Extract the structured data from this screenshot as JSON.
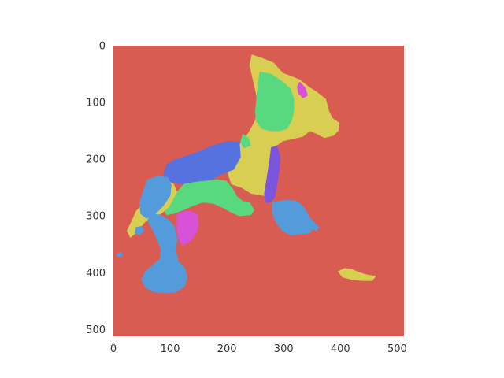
{
  "chart_data": {
    "type": "heatmap",
    "title": "",
    "xlabel": "",
    "ylabel": "",
    "xlim": [
      0,
      512
    ],
    "ylim": [
      512,
      0
    ],
    "grid": false,
    "xticks": [
      "0",
      "100",
      "200",
      "300",
      "400",
      "500"
    ],
    "yticks": [
      "0",
      "100",
      "200",
      "300",
      "400",
      "500"
    ],
    "background_label_color": "#d95c52",
    "segment_colors": {
      "red": "#d95c52",
      "yellow": "#d8cf52",
      "green": "#58d87f",
      "light_blue": "#549bdc",
      "blue": "#5572de",
      "magenta": "#d852d8",
      "purple": "#7b55dc"
    },
    "segments": [
      {
        "color": "yellow",
        "points": [
          [
            244,
            16
          ],
          [
            262,
            22
          ],
          [
            282,
            30
          ],
          [
            298,
            48
          ],
          [
            328,
            60
          ],
          [
            346,
            74
          ],
          [
            356,
            80
          ],
          [
            374,
            94
          ],
          [
            380,
            116
          ],
          [
            386,
            128
          ],
          [
            398,
            136
          ],
          [
            396,
            150
          ],
          [
            388,
            158
          ],
          [
            372,
            162
          ],
          [
            356,
            154
          ],
          [
            346,
            150
          ],
          [
            334,
            160
          ],
          [
            316,
            164
          ],
          [
            298,
            168
          ],
          [
            282,
            180
          ],
          [
            276,
            196
          ],
          [
            272,
            222
          ],
          [
            272,
            244
          ],
          [
            276,
            262
          ],
          [
            264,
            264
          ],
          [
            242,
            260
          ],
          [
            226,
            250
          ],
          [
            208,
            244
          ],
          [
            202,
            226
          ],
          [
            210,
            200
          ],
          [
            224,
            172
          ],
          [
            238,
            154
          ],
          [
            250,
            132
          ],
          [
            254,
            108
          ],
          [
            252,
            86
          ],
          [
            246,
            60
          ],
          [
            240,
            34
          ]
        ]
      },
      {
        "color": "green",
        "points": [
          [
            258,
            46
          ],
          [
            278,
            50
          ],
          [
            296,
            62
          ],
          [
            312,
            76
          ],
          [
            318,
            94
          ],
          [
            318,
            114
          ],
          [
            314,
            132
          ],
          [
            306,
            146
          ],
          [
            294,
            150
          ],
          [
            276,
            150
          ],
          [
            262,
            146
          ],
          [
            252,
            134
          ],
          [
            250,
            116
          ],
          [
            252,
            96
          ],
          [
            254,
            74
          ]
        ]
      },
      {
        "color": "magenta",
        "points": [
          [
            328,
            64
          ],
          [
            338,
            74
          ],
          [
            342,
            88
          ],
          [
            334,
            92
          ],
          [
            326,
            84
          ],
          [
            324,
            72
          ]
        ]
      },
      {
        "color": "green",
        "points": [
          [
            228,
            156
          ],
          [
            238,
            162
          ],
          [
            242,
            176
          ],
          [
            230,
            180
          ],
          [
            224,
            170
          ]
        ]
      },
      {
        "color": "blue",
        "points": [
          [
            204,
            168
          ],
          [
            222,
            170
          ],
          [
            224,
            196
          ],
          [
            212,
            218
          ],
          [
            192,
            226
          ],
          [
            172,
            236
          ],
          [
            148,
            244
          ],
          [
            124,
            244
          ],
          [
            100,
            240
          ],
          [
            88,
            228
          ],
          [
            94,
            210
          ],
          [
            110,
            200
          ],
          [
            130,
            194
          ],
          [
            152,
            186
          ],
          [
            176,
            176
          ]
        ]
      },
      {
        "color": "green",
        "points": [
          [
            124,
            244
          ],
          [
            146,
            240
          ],
          [
            166,
            238
          ],
          [
            182,
            236
          ],
          [
            198,
            238
          ],
          [
            210,
            252
          ],
          [
            218,
            266
          ],
          [
            228,
            274
          ],
          [
            240,
            276
          ],
          [
            248,
            290
          ],
          [
            242,
            298
          ],
          [
            222,
            300
          ],
          [
            208,
            294
          ],
          [
            194,
            286
          ],
          [
            176,
            278
          ],
          [
            158,
            276
          ],
          [
            140,
            282
          ],
          [
            122,
            290
          ],
          [
            106,
            296
          ],
          [
            94,
            298
          ],
          [
            88,
            288
          ],
          [
            100,
            272
          ],
          [
            112,
            258
          ]
        ]
      },
      {
        "color": "yellow",
        "points": [
          [
            92,
            236
          ],
          [
            106,
            244
          ],
          [
            112,
            258
          ],
          [
            104,
            272
          ],
          [
            98,
            284
          ],
          [
            84,
            296
          ],
          [
            66,
            304
          ],
          [
            54,
            312
          ],
          [
            44,
            326
          ],
          [
            30,
            338
          ],
          [
            24,
            326
          ],
          [
            32,
            310
          ],
          [
            40,
            292
          ],
          [
            56,
            274
          ],
          [
            72,
            258
          ]
        ]
      },
      {
        "color": "light_blue",
        "points": [
          [
            60,
            236
          ],
          [
            78,
            230
          ],
          [
            96,
            232
          ],
          [
            102,
            246
          ],
          [
            100,
            264
          ],
          [
            88,
            282
          ],
          [
            72,
            298
          ],
          [
            58,
            304
          ],
          [
            48,
            296
          ],
          [
            46,
            278
          ],
          [
            52,
            258
          ]
        ]
      },
      {
        "color": "light_blue",
        "points": [
          [
            66,
            296
          ],
          [
            82,
            298
          ],
          [
            96,
            306
          ],
          [
            108,
            320
          ],
          [
            112,
            340
          ],
          [
            110,
            362
          ],
          [
            114,
            380
          ],
          [
            126,
            392
          ],
          [
            130,
            408
          ],
          [
            126,
            424
          ],
          [
            110,
            434
          ],
          [
            92,
            436
          ],
          [
            72,
            434
          ],
          [
            56,
            426
          ],
          [
            50,
            412
          ],
          [
            56,
            398
          ],
          [
            70,
            386
          ],
          [
            82,
            376
          ],
          [
            84,
            358
          ],
          [
            76,
            340
          ],
          [
            68,
            322
          ],
          [
            60,
            308
          ]
        ]
      },
      {
        "color": "light_blue",
        "points": [
          [
            40,
            320
          ],
          [
            50,
            318
          ],
          [
            54,
            326
          ],
          [
            46,
            334
          ],
          [
            38,
            330
          ]
        ]
      },
      {
        "color": "light_blue",
        "points": [
          [
            6,
            366
          ],
          [
            14,
            364
          ],
          [
            16,
            370
          ],
          [
            8,
            372
          ]
        ]
      },
      {
        "color": "magenta",
        "points": [
          [
            112,
            298
          ],
          [
            124,
            292
          ],
          [
            138,
            292
          ],
          [
            148,
            298
          ],
          [
            150,
            314
          ],
          [
            146,
            330
          ],
          [
            136,
            344
          ],
          [
            122,
            352
          ],
          [
            114,
            340
          ],
          [
            112,
            322
          ]
        ]
      },
      {
        "color": "magenta",
        "points": [
          [
            118,
            300
          ],
          [
            128,
            294
          ],
          [
            132,
            306
          ],
          [
            124,
            312
          ]
        ]
      },
      {
        "color": "purple",
        "points": [
          [
            278,
            180
          ],
          [
            288,
            176
          ],
          [
            294,
            196
          ],
          [
            292,
            222
          ],
          [
            288,
            246
          ],
          [
            284,
            268
          ],
          [
            276,
            276
          ],
          [
            268,
            276
          ],
          [
            266,
            260
          ],
          [
            270,
            236
          ],
          [
            274,
            210
          ]
        ]
      },
      {
        "color": "light_blue",
        "points": [
          [
            280,
            276
          ],
          [
            306,
            272
          ],
          [
            324,
            274
          ],
          [
            336,
            286
          ],
          [
            344,
            300
          ],
          [
            356,
            316
          ],
          [
            346,
            330
          ],
          [
            330,
            332
          ],
          [
            312,
            334
          ],
          [
            298,
            326
          ],
          [
            288,
            314
          ],
          [
            280,
            296
          ]
        ]
      },
      {
        "color": "light_blue",
        "points": [
          [
            336,
            302
          ],
          [
            350,
            308
          ],
          [
            362,
            320
          ],
          [
            358,
            326
          ],
          [
            344,
            320
          ]
        ]
      },
      {
        "color": "yellow",
        "points": [
          [
            396,
            398
          ],
          [
            408,
            392
          ],
          [
            420,
            394
          ],
          [
            434,
            400
          ],
          [
            448,
            404
          ],
          [
            462,
            406
          ],
          [
            456,
            414
          ],
          [
            440,
            414
          ],
          [
            420,
            412
          ],
          [
            404,
            408
          ]
        ]
      }
    ]
  }
}
